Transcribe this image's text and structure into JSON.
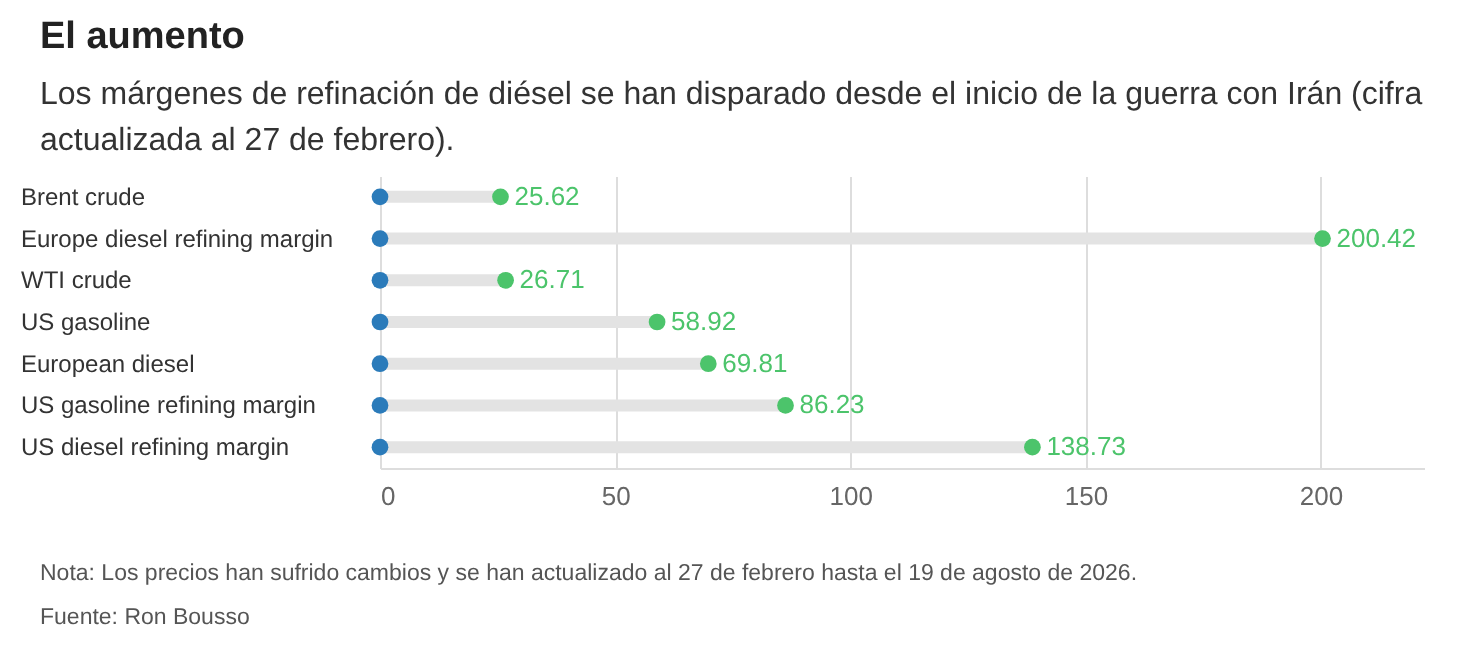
{
  "chart_data": {
    "type": "lollipop",
    "orientation": "horizontal",
    "title": "El aumento",
    "subtitle": "Los márgenes de refinación de diésel se han disparado desde el inicio de la guerra con Irán (cifra actualizada al 27 de febrero).",
    "categories": [
      "Brent crude",
      "Europe diesel refining margin",
      "WTI crude",
      "US gasoline",
      "European diesel",
      "US gasoline refining margin",
      "US diesel refining margin"
    ],
    "series": [
      {
        "type": "scatter",
        "color": "#2b7bba",
        "values": [
          0,
          0,
          0,
          0,
          0,
          0,
          0
        ]
      },
      {
        "color": "#4cc46b",
        "values": [
          25.62,
          200.42,
          26.71,
          58.92,
          69.81,
          86.23,
          138.73
        ],
        "value_labels": [
          "25.62",
          "200.42",
          "26.71",
          "58.92",
          "69.81",
          "86.23",
          "138.73"
        ]
      }
    ],
    "xlim": [
      0,
      222
    ],
    "xticks": [
      0,
      50,
      100,
      150,
      200
    ],
    "grid": "x",
    "marker": "circle",
    "annotations": [
      "Nota: Los precios han sufrido cambios y se han actualizado al 27 de febrero hasta el 19 de agosto de 2026.",
      "Fuente: Ron Bousso"
    ]
  }
}
